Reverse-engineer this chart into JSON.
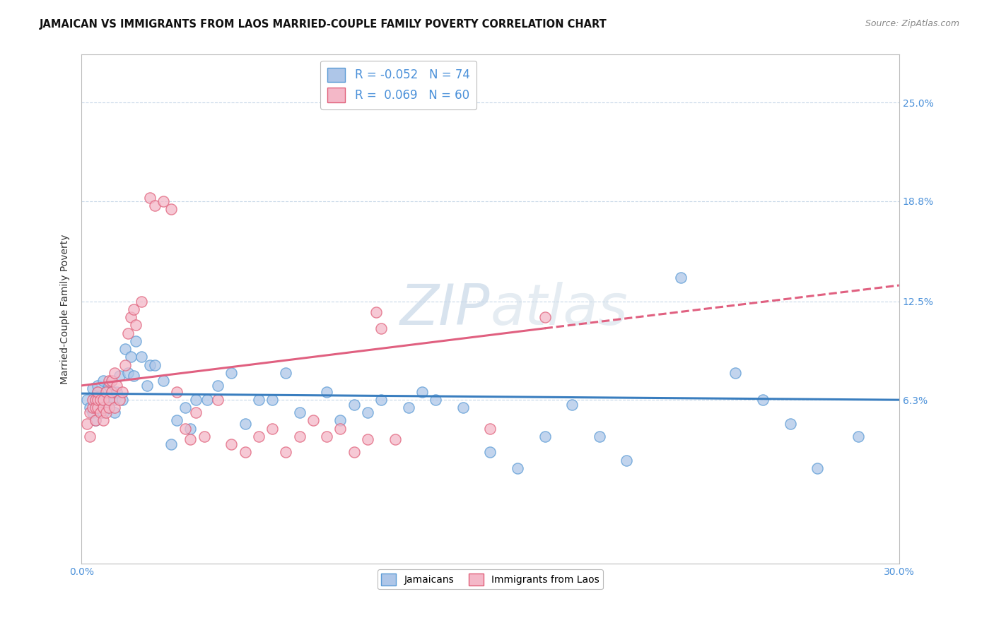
{
  "title": "JAMAICAN VS IMMIGRANTS FROM LAOS MARRIED-COUPLE FAMILY POVERTY CORRELATION CHART",
  "source": "Source: ZipAtlas.com",
  "ylabel": "Married-Couple Family Poverty",
  "xlim": [
    0.0,
    0.3
  ],
  "ylim": [
    -0.04,
    0.28
  ],
  "ytick_positions": [
    0.063,
    0.125,
    0.188,
    0.25
  ],
  "ytick_labels": [
    "6.3%",
    "12.5%",
    "18.8%",
    "25.0%"
  ],
  "jamaicans_color": "#aec6e8",
  "jamaicans_edge_color": "#5b9bd5",
  "laos_color": "#f4b8c8",
  "laos_edge_color": "#e0607a",
  "jamaicans_line_color": "#3a7ebf",
  "laos_line_color": "#e06080",
  "legend_r_jamaicans": "-0.052",
  "legend_n_jamaicans": "74",
  "legend_r_laos": "0.069",
  "legend_n_laos": "60",
  "jamaicans_x": [
    0.002,
    0.003,
    0.004,
    0.004,
    0.005,
    0.005,
    0.005,
    0.006,
    0.006,
    0.006,
    0.006,
    0.007,
    0.007,
    0.007,
    0.008,
    0.008,
    0.008,
    0.009,
    0.009,
    0.009,
    0.01,
    0.01,
    0.01,
    0.011,
    0.011,
    0.012,
    0.012,
    0.013,
    0.014,
    0.015,
    0.016,
    0.017,
    0.018,
    0.019,
    0.02,
    0.022,
    0.024,
    0.025,
    0.027,
    0.03,
    0.033,
    0.035,
    0.038,
    0.04,
    0.042,
    0.046,
    0.05,
    0.055,
    0.06,
    0.065,
    0.07,
    0.075,
    0.08,
    0.09,
    0.095,
    0.1,
    0.105,
    0.11,
    0.12,
    0.125,
    0.13,
    0.14,
    0.15,
    0.16,
    0.17,
    0.18,
    0.19,
    0.2,
    0.22,
    0.24,
    0.25,
    0.26,
    0.27,
    0.285
  ],
  "jamaicans_y": [
    0.063,
    0.058,
    0.055,
    0.07,
    0.063,
    0.06,
    0.05,
    0.058,
    0.063,
    0.068,
    0.072,
    0.06,
    0.063,
    0.058,
    0.055,
    0.063,
    0.075,
    0.058,
    0.063,
    0.068,
    0.058,
    0.063,
    0.072,
    0.063,
    0.068,
    0.055,
    0.063,
    0.068,
    0.078,
    0.063,
    0.095,
    0.08,
    0.09,
    0.078,
    0.1,
    0.09,
    0.072,
    0.085,
    0.085,
    0.075,
    0.035,
    0.05,
    0.058,
    0.045,
    0.063,
    0.063,
    0.072,
    0.08,
    0.048,
    0.063,
    0.063,
    0.08,
    0.055,
    0.068,
    0.05,
    0.06,
    0.055,
    0.063,
    0.058,
    0.068,
    0.063,
    0.058,
    0.03,
    0.02,
    0.04,
    0.06,
    0.04,
    0.025,
    0.14,
    0.08,
    0.063,
    0.048,
    0.02,
    0.04
  ],
  "laos_x": [
    0.002,
    0.003,
    0.003,
    0.004,
    0.004,
    0.005,
    0.005,
    0.005,
    0.006,
    0.006,
    0.006,
    0.007,
    0.007,
    0.008,
    0.008,
    0.008,
    0.009,
    0.009,
    0.01,
    0.01,
    0.01,
    0.011,
    0.011,
    0.012,
    0.012,
    0.013,
    0.014,
    0.015,
    0.016,
    0.017,
    0.018,
    0.019,
    0.02,
    0.022,
    0.025,
    0.027,
    0.03,
    0.033,
    0.035,
    0.038,
    0.04,
    0.042,
    0.045,
    0.05,
    0.055,
    0.06,
    0.065,
    0.07,
    0.075,
    0.08,
    0.085,
    0.09,
    0.095,
    0.1,
    0.105,
    0.108,
    0.11,
    0.115,
    0.15,
    0.17
  ],
  "laos_y": [
    0.048,
    0.04,
    0.055,
    0.058,
    0.063,
    0.05,
    0.063,
    0.058,
    0.058,
    0.063,
    0.068,
    0.055,
    0.063,
    0.05,
    0.058,
    0.063,
    0.055,
    0.068,
    0.058,
    0.063,
    0.075,
    0.068,
    0.075,
    0.058,
    0.08,
    0.072,
    0.063,
    0.068,
    0.085,
    0.105,
    0.115,
    0.12,
    0.11,
    0.125,
    0.19,
    0.185,
    0.188,
    0.183,
    0.068,
    0.045,
    0.038,
    0.055,
    0.04,
    0.063,
    0.035,
    0.03,
    0.04,
    0.045,
    0.03,
    0.04,
    0.05,
    0.04,
    0.045,
    0.03,
    0.038,
    0.118,
    0.108,
    0.038,
    0.045,
    0.115
  ]
}
